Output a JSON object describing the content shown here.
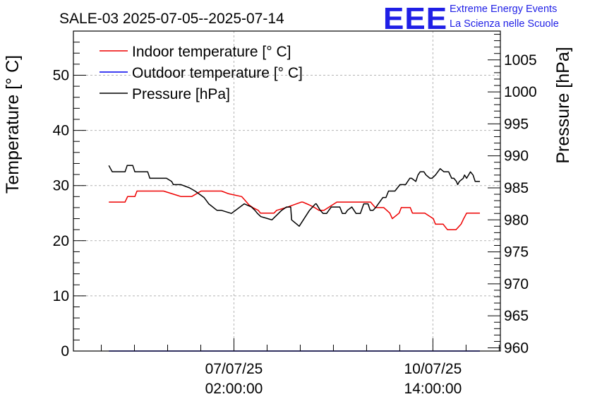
{
  "chart_data": {
    "type": "line",
    "title": "SALE-03 2025-07-05--2025-07-14",
    "ylabel": "Temperature [° C]",
    "y2label": "Pressure [hPa]",
    "ylim": [
      0,
      58
    ],
    "y2lim": [
      959.5,
      1009.5
    ],
    "yticks": [
      "0",
      "10",
      "20",
      "30",
      "40",
      "50"
    ],
    "y2ticks": [
      "960",
      "965",
      "970",
      "975",
      "980",
      "985",
      "990",
      "995",
      "1000",
      "1005"
    ],
    "xlim": [
      0,
      100
    ],
    "xticks": [
      {
        "x": 37.6,
        "line1": "07/07/25",
        "line2": "02:00:00"
      },
      {
        "x": 84.2,
        "line1": "10/07/25",
        "line2": "14:00:00"
      }
    ],
    "legend_position": "top-left",
    "grid": true,
    "series": [
      {
        "name": "Indoor temperature [° C]",
        "color": "#ee0000",
        "axis": "left",
        "x": [
          8.3,
          12.1,
          12.7,
          14.4,
          14.9,
          21.1,
          25.2,
          27.7,
          29.9,
          30.3,
          34.7,
          36.4,
          39.4,
          40.0,
          41.1,
          42.0,
          43.3,
          43.8,
          44.7,
          45.3,
          47.0,
          47.6,
          49.8,
          53.4,
          53.7,
          55.2,
          56.5,
          57.5,
          58.7,
          59.7,
          60.7,
          61.7,
          63.0,
          64.3,
          69.6,
          70.7,
          72.2,
          72.7,
          74.1,
          74.7,
          76.3,
          76.8,
          78.9,
          79.4,
          80.6,
          81.9,
          82.3,
          84.3,
          84.8,
          86.1,
          86.6,
          87.6,
          88.2,
          89.6,
          90.8,
          91.4,
          92.1,
          95.2
        ],
        "y": [
          27,
          27,
          28,
          28,
          29,
          29,
          28,
          28,
          29,
          29,
          29,
          28.5,
          28,
          27.5,
          26.5,
          26,
          25.5,
          25,
          25,
          25,
          25,
          25.5,
          26,
          27,
          27,
          26.5,
          26,
          25.5,
          25.5,
          26,
          26.5,
          27,
          27,
          27,
          27,
          26,
          26,
          26,
          25,
          24,
          25,
          26,
          26,
          25,
          25,
          25,
          25,
          24,
          23,
          23,
          23,
          22,
          22,
          22,
          23,
          24,
          25,
          25
        ]
      },
      {
        "name": "Outdoor temperature [° C]",
        "color": "#0000ee",
        "axis": "left",
        "x": [
          8.3,
          95.2
        ],
        "y": [
          0,
          0
        ]
      },
      {
        "name": "Pressure [hPa]",
        "color": "#000000",
        "axis": "right",
        "x": [
          8.3,
          9.1,
          12.1,
          12.6,
          13.9,
          14.4,
          15.5,
          17.4,
          17.9,
          21.8,
          23.0,
          23.4,
          25.2,
          27.2,
          28.5,
          30.6,
          31.7,
          33.6,
          34.6,
          37.0,
          40.0,
          41.7,
          42.5,
          43.1,
          43.9,
          46.5,
          48.8,
          49.9,
          50.9,
          51.1,
          52.0,
          52.9,
          55.3,
          56.7,
          56.9,
          57.8,
          58.5,
          59.3,
          60.4,
          61.4,
          62.4,
          63.0,
          63.7,
          64.2,
          65.2,
          66.2,
          67.2,
          68.0,
          69.0,
          69.5,
          70.2,
          70.9,
          72.5,
          73.2,
          73.8,
          75.3,
          76.5,
          77.5,
          77.8,
          78.8,
          79.2,
          80.2,
          80.7,
          81.2,
          82.1,
          82.6,
          83.5,
          84.0,
          84.8,
          85.9,
          86.8,
          87.9,
          88.6,
          89.1,
          89.7,
          90.0,
          90.4,
          91.3,
          91.6,
          92.1,
          93.0,
          93.6,
          94.1,
          95.2
        ],
        "y": [
          988.5,
          987.5,
          987.5,
          988.5,
          988.5,
          987.5,
          987.5,
          987.5,
          986.5,
          986.5,
          986.0,
          985.5,
          985.5,
          985.0,
          984.5,
          983.5,
          982.5,
          981.5,
          981.5,
          981.0,
          982.5,
          982.0,
          981.5,
          981.0,
          980.5,
          980.0,
          981.5,
          982.0,
          982.0,
          980.0,
          979.5,
          979.0,
          981.5,
          982.5,
          982.5,
          981.5,
          981.0,
          981.0,
          982.0,
          982.0,
          982.0,
          981.0,
          981.0,
          981.5,
          982.0,
          981.0,
          981.0,
          982.5,
          982.5,
          981.5,
          981.5,
          982.0,
          983.5,
          983.5,
          984.5,
          984.5,
          985.5,
          985.5,
          985.5,
          986.5,
          986.5,
          986.0,
          987.0,
          987.5,
          987.5,
          987.0,
          986.5,
          986.5,
          987.0,
          988.0,
          987.5,
          987.5,
          986.5,
          986.5,
          986.0,
          985.5,
          986.0,
          986.5,
          987.0,
          986.5,
          987.5,
          987.0,
          986.0,
          986.0
        ]
      }
    ]
  },
  "logo": {
    "mark": "EEE",
    "line1": "Extreme Energy Events",
    "line2": "La Scienza nelle Scuole"
  }
}
